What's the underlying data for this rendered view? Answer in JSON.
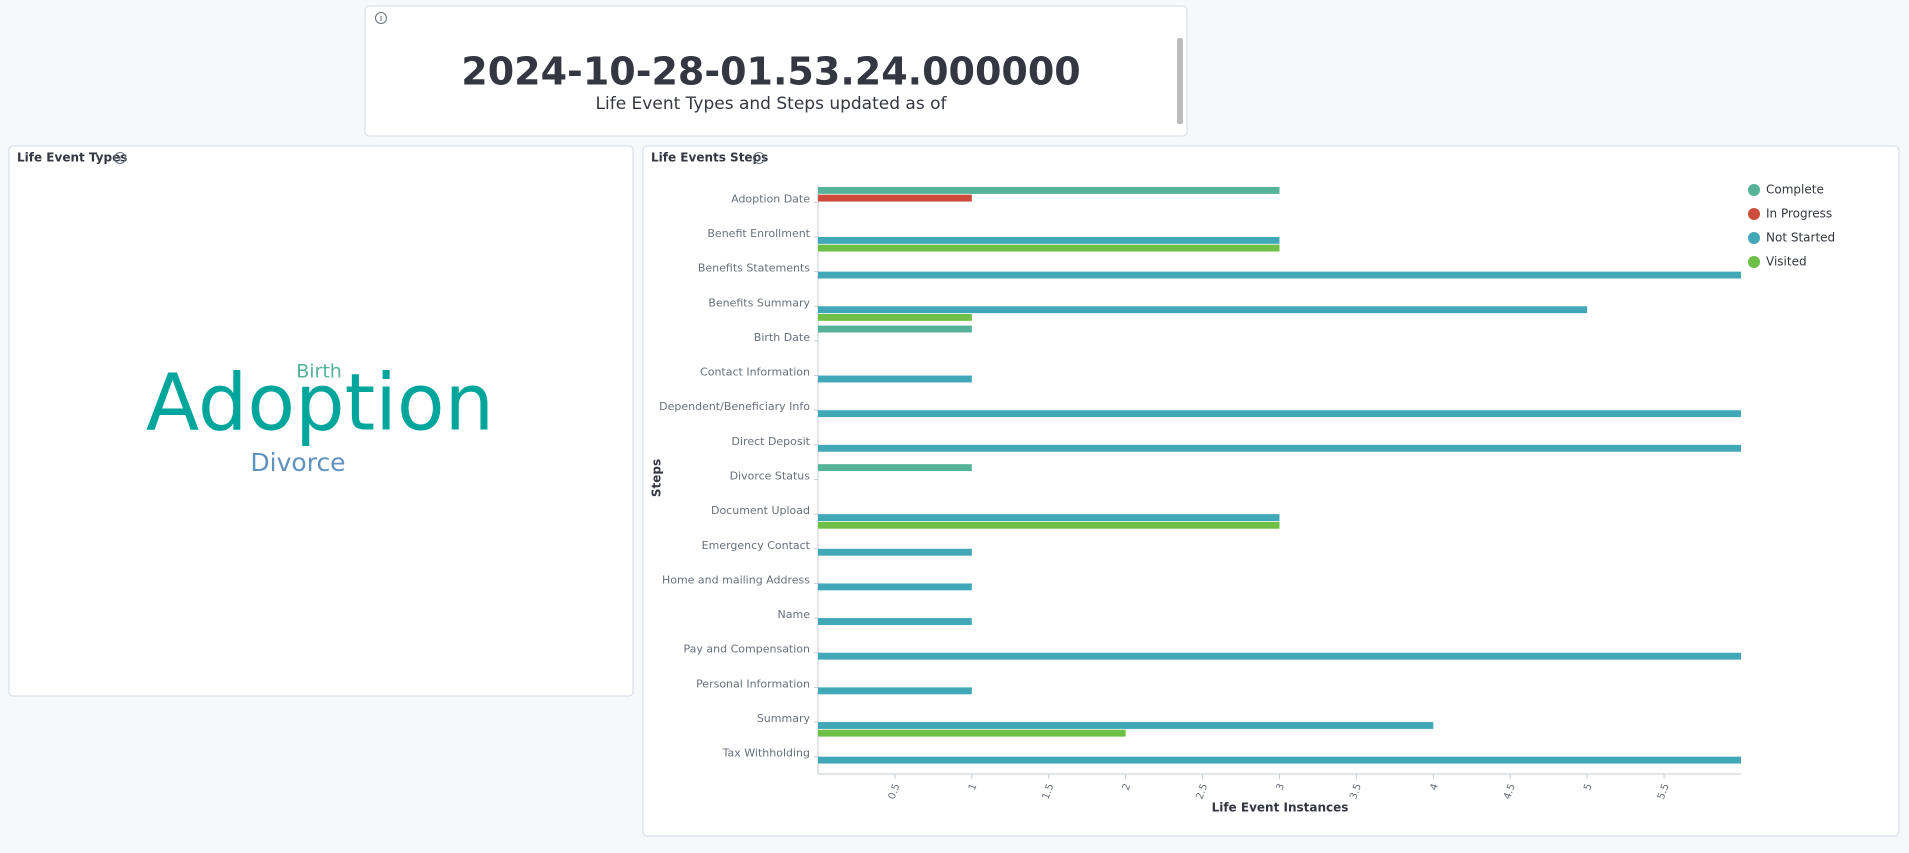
{
  "metric": {
    "value": "2024-10-28-01.53.24.000000",
    "label": "Life Event Types and Steps updated as of"
  },
  "word_cloud": {
    "title": "Life Event Types",
    "words": [
      {
        "text": "Birth",
        "color": "#54b399"
      },
      {
        "text": "Adoption",
        "color": "#00a69b"
      },
      {
        "text": "Divorce",
        "color": "#6092c0"
      }
    ]
  },
  "chart_data": {
    "type": "bar",
    "orientation": "horizontal",
    "title": "Life Events Steps",
    "x_label": "Life Event Instances",
    "y_label": "Steps",
    "categories": [
      "Adoption Date",
      "Benefit Enrollment",
      "Benefits Statements",
      "Benefits Summary",
      "Birth Date",
      "Contact Information",
      "Dependent/Beneficiary Info",
      "Direct Deposit",
      "Divorce Status",
      "Document Upload",
      "Emergency Contact",
      "Home and mailing Address",
      "Name",
      "Pay and Compensation",
      "Personal Information",
      "Summary",
      "Tax Withholding"
    ],
    "series": [
      {
        "name": "Complete",
        "color": "#54b399",
        "values": [
          3,
          null,
          null,
          null,
          1,
          null,
          null,
          null,
          1,
          null,
          null,
          null,
          null,
          null,
          null,
          null,
          null
        ]
      },
      {
        "name": "In Progress",
        "color": "#cc4b3a",
        "values": [
          1,
          null,
          null,
          null,
          null,
          null,
          null,
          null,
          null,
          null,
          null,
          null,
          null,
          null,
          null,
          null,
          null
        ]
      },
      {
        "name": "Not Started",
        "color": "#41a8b8",
        "values": [
          null,
          3,
          6,
          5,
          null,
          1,
          6,
          6,
          null,
          3,
          1,
          1,
          1,
          6,
          1,
          4,
          6
        ]
      },
      {
        "name": "Visited",
        "color": "#6dbf45",
        "values": [
          null,
          3,
          null,
          1,
          null,
          null,
          null,
          null,
          null,
          3,
          null,
          null,
          null,
          null,
          null,
          2,
          null
        ]
      }
    ],
    "xlim": [
      0,
      6
    ],
    "xticks": [
      0.5,
      1,
      1.5,
      2,
      2.5,
      3,
      3.5,
      4,
      4.5,
      5,
      5.5
    ],
    "legend": "top-right"
  }
}
